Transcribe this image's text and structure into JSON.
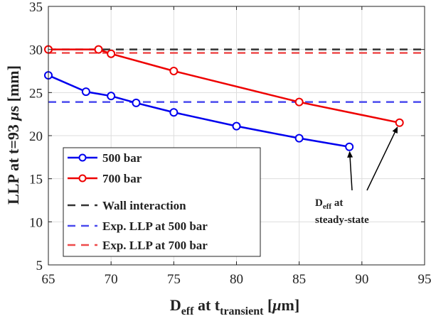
{
  "chart_data": {
    "type": "line",
    "xlabel": {
      "main": "D",
      "sub1": "eff",
      "mid": " at t",
      "sub2": "transient",
      "unit_open": " [",
      "mu": "μ",
      "unit_rest": "m]"
    },
    "ylabel": {
      "pre": "LLP at t=93 ",
      "mu": "μ",
      "post": "s [mm]"
    },
    "xlim": [
      65,
      95
    ],
    "ylim": [
      5,
      35
    ],
    "xticks": [
      "65",
      "70",
      "75",
      "80",
      "85",
      "90",
      "95"
    ],
    "yticks": [
      "5",
      "10",
      "15",
      "20",
      "25",
      "30",
      "35"
    ],
    "grid": true,
    "legend_position": "bottom-left",
    "series": [
      {
        "name": "500 bar",
        "color": "#0000ee",
        "style": "solid-marker",
        "x": [
          65,
          68,
          70,
          72,
          75,
          80,
          85,
          89
        ],
        "y": [
          27.0,
          25.1,
          24.6,
          23.8,
          22.7,
          21.1,
          19.7,
          18.7
        ]
      },
      {
        "name": "700 bar",
        "color": "#ee0000",
        "style": "solid-marker",
        "x": [
          65,
          69,
          70,
          75,
          85,
          93
        ],
        "y": [
          30.0,
          30.0,
          29.5,
          27.5,
          23.9,
          21.5
        ]
      }
    ],
    "reference_lines": [
      {
        "name": "Wall interaction",
        "color": "#333333",
        "y": 30.0
      },
      {
        "name": "Exp. LLP at 500 bar",
        "color": "#4a4aee",
        "y": 23.9
      },
      {
        "name": "Exp. LLP at 700 bar",
        "color": "#ee4a4a",
        "y": 29.6
      }
    ],
    "annotation": {
      "line1_main": "D",
      "line1_sub": "eff",
      "line1_rest": " at",
      "line2": "steady-state",
      "arrow_targets": [
        {
          "x": 89,
          "y": 18.7
        },
        {
          "x": 93,
          "y": 21.5
        }
      ]
    }
  }
}
